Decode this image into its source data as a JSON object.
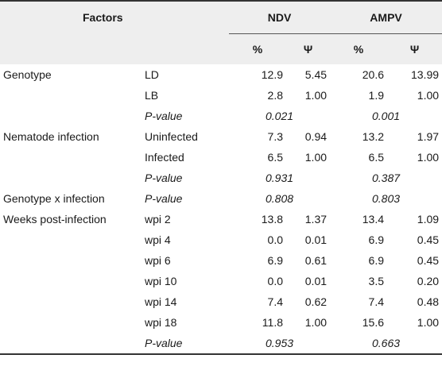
{
  "table": {
    "header": {
      "factors": "Factors",
      "groups": [
        "NDV",
        "AMPV"
      ],
      "subcols": [
        "%",
        "Ψ",
        "%",
        "Ψ"
      ]
    },
    "rows": [
      {
        "factor": "Genotype",
        "level": "LD",
        "vals": [
          "12.9",
          "5.45",
          "20.6",
          "13.99"
        ]
      },
      {
        "factor": "",
        "level": "LB",
        "vals": [
          "2.8",
          "1.00",
          "1.9",
          "1.00"
        ]
      },
      {
        "factor": "",
        "level": "P-value",
        "pvals": [
          "0.021",
          "0.001"
        ]
      },
      {
        "factor": "Nematode infection",
        "level": "Uninfected",
        "vals": [
          "7.3",
          "0.94",
          "13.2",
          "1.97"
        ]
      },
      {
        "factor": "",
        "level": "Infected",
        "vals": [
          "6.5",
          "1.00",
          "6.5",
          "1.00"
        ]
      },
      {
        "factor": "",
        "level": "P-value",
        "pvals": [
          "0.931",
          "0.387"
        ]
      },
      {
        "factor": "Genotype x infection",
        "level": "P-value",
        "pvals": [
          "0.808",
          "0.803"
        ]
      },
      {
        "factor": "Weeks post-infection",
        "level": "wpi 2",
        "vals": [
          "13.8",
          "1.37",
          "13.4",
          "1.09"
        ]
      },
      {
        "factor": "",
        "level": "wpi 4",
        "vals": [
          "0.0",
          "0.01",
          "6.9",
          "0.45"
        ]
      },
      {
        "factor": "",
        "level": "wpi 6",
        "vals": [
          "6.9",
          "0.61",
          "6.9",
          "0.45"
        ]
      },
      {
        "factor": "",
        "level": "wpi 10",
        "vals": [
          "0.0",
          "0.01",
          "3.5",
          "0.20"
        ]
      },
      {
        "factor": "",
        "level": "wpi 14",
        "vals": [
          "7.4",
          "0.62",
          "7.4",
          "0.48"
        ]
      },
      {
        "factor": "",
        "level": "wpi 18",
        "vals": [
          "11.8",
          "1.00",
          "15.6",
          "1.00"
        ]
      },
      {
        "factor": "",
        "level": "P-value",
        "pvals": [
          "0.953",
          "0.663"
        ]
      }
    ]
  }
}
